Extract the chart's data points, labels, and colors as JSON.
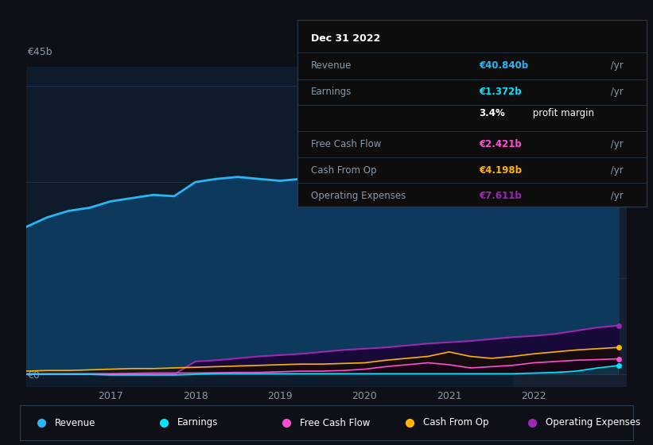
{
  "background_color": "#0d1117",
  "plot_bg_color": "#0d1b2a",
  "grid_color": "#1e3050",
  "ylabel_top": "€45b",
  "ylabel_bottom": "€0",
  "years": [
    2016.0,
    2016.25,
    2016.5,
    2016.75,
    2017.0,
    2017.25,
    2017.5,
    2017.75,
    2018.0,
    2018.25,
    2018.5,
    2018.75,
    2019.0,
    2019.25,
    2019.5,
    2019.75,
    2020.0,
    2020.25,
    2020.5,
    2020.75,
    2021.0,
    2021.25,
    2021.5,
    2021.75,
    2022.0,
    2022.25,
    2022.5,
    2022.75,
    2023.0
  ],
  "revenue": [
    23.0,
    24.5,
    25.5,
    26.0,
    27.0,
    27.5,
    28.0,
    27.8,
    30.0,
    30.5,
    30.8,
    30.5,
    30.2,
    30.5,
    31.0,
    31.5,
    32.0,
    32.5,
    33.0,
    33.5,
    34.0,
    34.5,
    34.0,
    34.5,
    35.5,
    37.0,
    39.0,
    40.5,
    40.84
  ],
  "earnings": [
    0.0,
    0.0,
    0.0,
    0.0,
    -0.1,
    -0.1,
    -0.1,
    -0.1,
    0.0,
    0.1,
    0.1,
    0.1,
    0.1,
    0.1,
    0.1,
    0.1,
    0.1,
    0.1,
    0.1,
    0.1,
    0.1,
    0.1,
    0.1,
    0.1,
    0.2,
    0.3,
    0.5,
    1.0,
    1.372
  ],
  "free_cash_flow": [
    0.1,
    0.1,
    0.1,
    0.1,
    0.1,
    0.15,
    0.2,
    0.2,
    0.2,
    0.25,
    0.3,
    0.3,
    0.4,
    0.5,
    0.5,
    0.6,
    0.8,
    1.2,
    1.5,
    1.8,
    1.5,
    1.0,
    1.2,
    1.4,
    1.8,
    2.0,
    2.2,
    2.3,
    2.421
  ],
  "cash_from_op": [
    0.5,
    0.6,
    0.6,
    0.7,
    0.8,
    0.9,
    0.9,
    1.0,
    1.1,
    1.2,
    1.3,
    1.4,
    1.5,
    1.6,
    1.6,
    1.7,
    1.8,
    2.2,
    2.5,
    2.8,
    3.5,
    2.8,
    2.5,
    2.8,
    3.2,
    3.5,
    3.8,
    4.0,
    4.198
  ],
  "operating_expenses": [
    0.0,
    0.0,
    0.0,
    0.0,
    0.0,
    0.0,
    0.0,
    0.0,
    2.0,
    2.2,
    2.5,
    2.8,
    3.0,
    3.2,
    3.5,
    3.8,
    4.0,
    4.2,
    4.5,
    4.8,
    5.0,
    5.2,
    5.5,
    5.8,
    6.0,
    6.3,
    6.8,
    7.3,
    7.611
  ],
  "revenue_color": "#29b6f6",
  "revenue_fill": "#0d3a5c",
  "earnings_color": "#00e5ff",
  "free_cash_flow_color": "#ff4dd2",
  "cash_from_op_color": "#ffb300",
  "operating_expenses_color": "#9c27b0",
  "highlight_x_start": 2021.75,
  "highlight_color": "#162030",
  "xlim": [
    2016.0,
    2023.1
  ],
  "ylim": [
    -2.0,
    48.0
  ],
  "info_box": {
    "date": "Dec 31 2022",
    "revenue_label": "Revenue",
    "revenue_value": "€40.840b",
    "revenue_color": "#29b6f6",
    "earnings_label": "Earnings",
    "earnings_value": "€1.372b",
    "earnings_color": "#00e5ff",
    "margin_text": "3.4% profit margin",
    "margin_pct": "3.4%",
    "fcf_label": "Free Cash Flow",
    "fcf_value": "€2.421b",
    "fcf_color": "#ff4dd2",
    "cfo_label": "Cash From Op",
    "cfo_value": "€4.198b",
    "cfo_color": "#ffb300",
    "opex_label": "Operating Expenses",
    "opex_value": "€7.611b",
    "opex_color": "#9c27b0"
  },
  "legend_items": [
    {
      "label": "Revenue",
      "color": "#29b6f6"
    },
    {
      "label": "Earnings",
      "color": "#00e5ff"
    },
    {
      "label": "Free Cash Flow",
      "color": "#ff4dd2"
    },
    {
      "label": "Cash From Op",
      "color": "#ffb300"
    },
    {
      "label": "Operating Expenses",
      "color": "#9c27b0"
    }
  ],
  "xticks": [
    2017,
    2018,
    2019,
    2020,
    2021,
    2022
  ],
  "xtick_labels": [
    "2017",
    "2018",
    "2019",
    "2020",
    "2021",
    "2022"
  ]
}
